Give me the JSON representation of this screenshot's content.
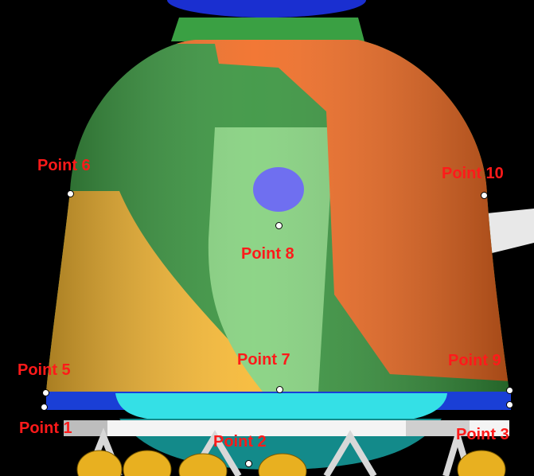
{
  "colors": {
    "background": "#000000",
    "label": "#ff1a1a",
    "green": "#2f8f35",
    "light_green": "#7fd07a",
    "orange": "#f06a1a",
    "yellow": "#f6c330",
    "blue_window": "#6f6ff0",
    "cyan_band": "#34e0e6",
    "blue_band": "#1a3fd6"
  },
  "points": [
    {
      "label": "Point 1"
    },
    {
      "label": "Point 2"
    },
    {
      "label": "Point 3"
    },
    {
      "label": "Point 5"
    },
    {
      "label": "Point 6"
    },
    {
      "label": "Point 7"
    },
    {
      "label": "Point 8"
    },
    {
      "label": "Point 9"
    },
    {
      "label": "Point 10"
    }
  ]
}
